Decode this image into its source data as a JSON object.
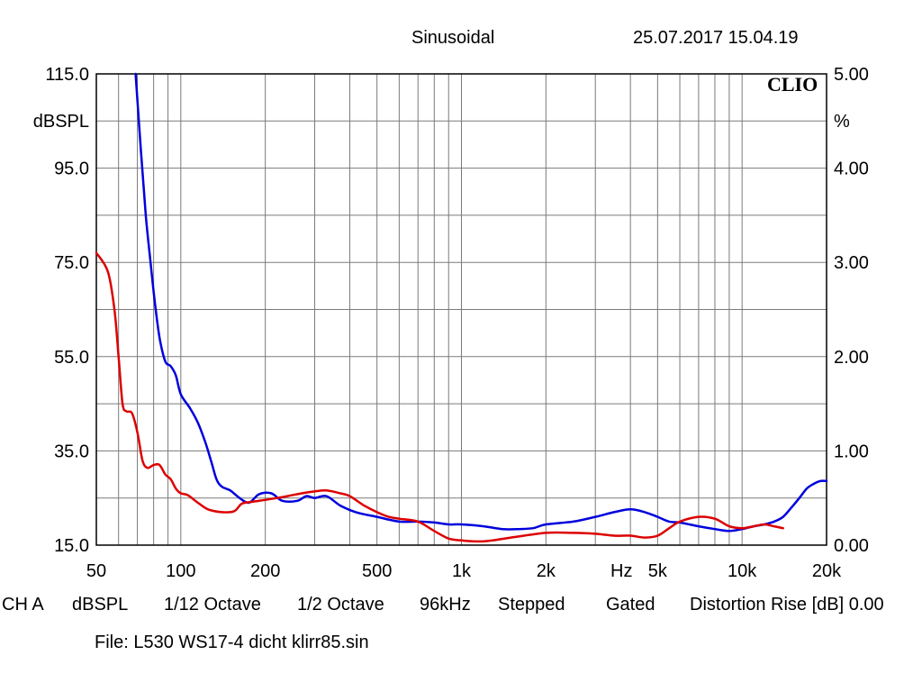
{
  "header": {
    "mode": "Sinusoidal",
    "datetime": "25.07.2017 15.04.19",
    "brand": "CLIO"
  },
  "chart_data": {
    "type": "line",
    "x_scale": "log",
    "xlim": [
      50,
      20000
    ],
    "y_left": {
      "unit": "dBSPL",
      "lim": [
        15,
        115
      ],
      "tick_labels": [
        "115.0",
        "95.0",
        "75.0",
        "55.0",
        "35.0",
        "15.0"
      ]
    },
    "y_right": {
      "unit": "%",
      "lim": [
        0,
        5
      ],
      "tick_labels": [
        "5.00",
        "4.00",
        "3.00",
        "2.00",
        "1.00",
        "0.00"
      ]
    },
    "x_tick_labels": [
      {
        "v": 50,
        "t": "50"
      },
      {
        "v": 100,
        "t": "100"
      },
      {
        "v": 200,
        "t": "200"
      },
      {
        "v": 500,
        "t": "500"
      },
      {
        "v": 1000,
        "t": "1k"
      },
      {
        "v": 2000,
        "t": "2k"
      },
      {
        "v": 5000,
        "t": "5k"
      },
      {
        "v": 10000,
        "t": "10k"
      },
      {
        "v": 20000,
        "t": "20k"
      }
    ],
    "x_unit_label": "Hz",
    "grid": true,
    "series": [
      {
        "color": "#0000dd",
        "axis": "right",
        "points": [
          [
            69,
            5.0
          ],
          [
            72,
            4.2
          ],
          [
            75,
            3.5
          ],
          [
            78,
            3.0
          ],
          [
            81,
            2.55
          ],
          [
            84,
            2.2
          ],
          [
            88,
            1.95
          ],
          [
            92,
            1.9
          ],
          [
            96,
            1.8
          ],
          [
            100,
            1.6
          ],
          [
            108,
            1.45
          ],
          [
            115,
            1.3
          ],
          [
            122,
            1.1
          ],
          [
            128,
            0.9
          ],
          [
            134,
            0.7
          ],
          [
            140,
            0.62
          ],
          [
            150,
            0.58
          ],
          [
            162,
            0.5
          ],
          [
            175,
            0.45
          ],
          [
            190,
            0.54
          ],
          [
            210,
            0.55
          ],
          [
            230,
            0.47
          ],
          [
            260,
            0.47
          ],
          [
            280,
            0.52
          ],
          [
            300,
            0.5
          ],
          [
            330,
            0.52
          ],
          [
            370,
            0.42
          ],
          [
            420,
            0.35
          ],
          [
            500,
            0.3
          ],
          [
            600,
            0.25
          ],
          [
            700,
            0.25
          ],
          [
            800,
            0.24
          ],
          [
            900,
            0.22
          ],
          [
            1000,
            0.22
          ],
          [
            1200,
            0.2
          ],
          [
            1400,
            0.17
          ],
          [
            1600,
            0.17
          ],
          [
            1800,
            0.18
          ],
          [
            2000,
            0.22
          ],
          [
            2500,
            0.25
          ],
          [
            3000,
            0.3
          ],
          [
            3500,
            0.35
          ],
          [
            4000,
            0.38
          ],
          [
            4500,
            0.35
          ],
          [
            5000,
            0.3
          ],
          [
            5500,
            0.25
          ],
          [
            6000,
            0.24
          ],
          [
            7000,
            0.2
          ],
          [
            8000,
            0.17
          ],
          [
            9000,
            0.15
          ],
          [
            10000,
            0.17
          ],
          [
            11000,
            0.2
          ],
          [
            12000,
            0.22
          ],
          [
            13000,
            0.25
          ],
          [
            14000,
            0.3
          ],
          [
            15000,
            0.4
          ],
          [
            16000,
            0.5
          ],
          [
            17000,
            0.6
          ],
          [
            18000,
            0.65
          ],
          [
            19000,
            0.68
          ],
          [
            20000,
            0.68
          ]
        ]
      },
      {
        "color": "#dd0000",
        "axis": "right",
        "points": [
          [
            50,
            3.1
          ],
          [
            55,
            2.9
          ],
          [
            58,
            2.5
          ],
          [
            60,
            2.0
          ],
          [
            62,
            1.5
          ],
          [
            64,
            1.42
          ],
          [
            67,
            1.4
          ],
          [
            70,
            1.2
          ],
          [
            73,
            0.9
          ],
          [
            76,
            0.82
          ],
          [
            80,
            0.85
          ],
          [
            84,
            0.85
          ],
          [
            88,
            0.75
          ],
          [
            92,
            0.7
          ],
          [
            96,
            0.6
          ],
          [
            100,
            0.55
          ],
          [
            106,
            0.53
          ],
          [
            115,
            0.45
          ],
          [
            125,
            0.38
          ],
          [
            140,
            0.35
          ],
          [
            155,
            0.36
          ],
          [
            165,
            0.44
          ],
          [
            180,
            0.46
          ],
          [
            200,
            0.48
          ],
          [
            220,
            0.5
          ],
          [
            240,
            0.52
          ],
          [
            270,
            0.55
          ],
          [
            300,
            0.57
          ],
          [
            330,
            0.58
          ],
          [
            370,
            0.55
          ],
          [
            400,
            0.52
          ],
          [
            450,
            0.42
          ],
          [
            500,
            0.35
          ],
          [
            550,
            0.3
          ],
          [
            600,
            0.28
          ],
          [
            700,
            0.25
          ],
          [
            800,
            0.15
          ],
          [
            900,
            0.07
          ],
          [
            1000,
            0.05
          ],
          [
            1200,
            0.04
          ],
          [
            1500,
            0.08
          ],
          [
            2000,
            0.13
          ],
          [
            2500,
            0.13
          ],
          [
            3000,
            0.12
          ],
          [
            3500,
            0.1
          ],
          [
            4000,
            0.1
          ],
          [
            4500,
            0.08
          ],
          [
            5000,
            0.1
          ],
          [
            5500,
            0.18
          ],
          [
            6000,
            0.25
          ],
          [
            7000,
            0.3
          ],
          [
            8000,
            0.28
          ],
          [
            9000,
            0.2
          ],
          [
            10000,
            0.18
          ],
          [
            11000,
            0.2
          ],
          [
            12000,
            0.22
          ],
          [
            13000,
            0.2
          ],
          [
            14000,
            0.18
          ]
        ]
      }
    ]
  },
  "footer": {
    "channel": "CH A",
    "unit": "dBSPL",
    "smoothing": "1/12 Octave",
    "bandwidth": "1/2 Octave",
    "sample_rate": "96kHz",
    "sweep": "Stepped",
    "window": "Gated",
    "distortion": "Distortion Rise [dB] 0.00",
    "file": "File: L530 WS17-4 dicht klirr85.sin"
  }
}
